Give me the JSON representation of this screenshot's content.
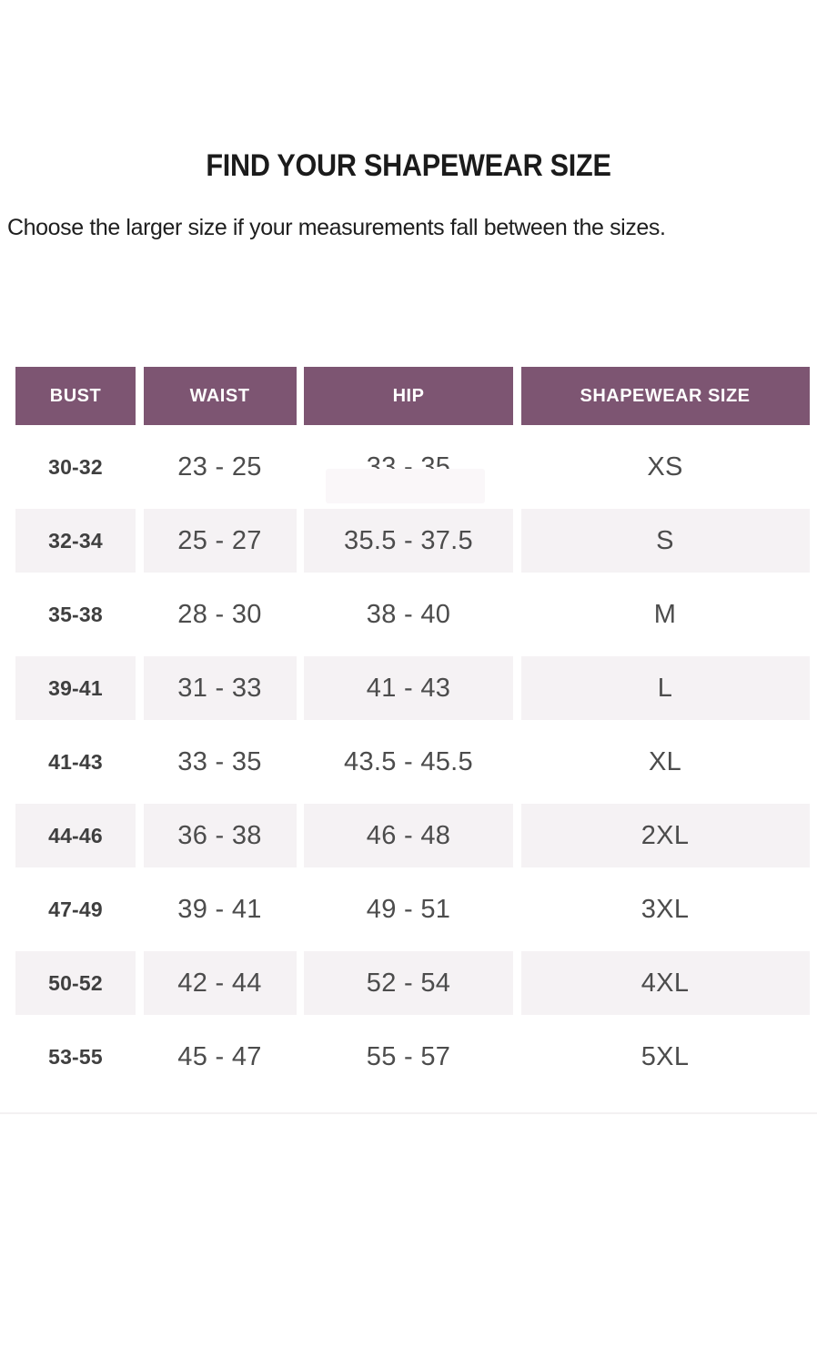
{
  "page": {
    "title": "FIND YOUR SHAPEWEAR SIZE",
    "subtitle": "Choose the larger size if your measurements fall between the sizes."
  },
  "table": {
    "headers": [
      "BUST",
      "WAIST",
      "HIP",
      "SHAPEWEAR SIZE"
    ],
    "column_keys": [
      "bust",
      "waist",
      "hip",
      "size"
    ],
    "rows": [
      {
        "bust": "30-32",
        "waist": "23 - 25",
        "hip": "33 - 35",
        "size": "XS"
      },
      {
        "bust": "32-34",
        "waist": "25 - 27",
        "hip": "35.5 - 37.5",
        "size": "S"
      },
      {
        "bust": "35-38",
        "waist": "28 - 30",
        "hip": "38 - 40",
        "size": "M"
      },
      {
        "bust": "39-41",
        "waist": "31 - 33",
        "hip": "41 - 43",
        "size": "L"
      },
      {
        "bust": "41-43",
        "waist": "33 - 35",
        "hip": "43.5 - 45.5",
        "size": "XL"
      },
      {
        "bust": "44-46",
        "waist": "36 - 38",
        "hip": "46 - 48",
        "size": "2XL"
      },
      {
        "bust": "47-49",
        "waist": "39 - 41",
        "hip": "49 - 51",
        "size": "3XL"
      },
      {
        "bust": "50-52",
        "waist": "42 - 44",
        "hip": "52 - 54",
        "size": "4XL"
      },
      {
        "bust": "53-55",
        "waist": "45 - 47",
        "hip": "55 - 57",
        "size": "5XL"
      }
    ]
  },
  "colors": {
    "header_bg": "#7d5572",
    "header_text": "#ffffff",
    "row_alt_bg": "#f5f2f4",
    "bust_text": "#3f3f3f",
    "cell_text": "#4c4c4c",
    "divider": "#f3f1f2"
  }
}
